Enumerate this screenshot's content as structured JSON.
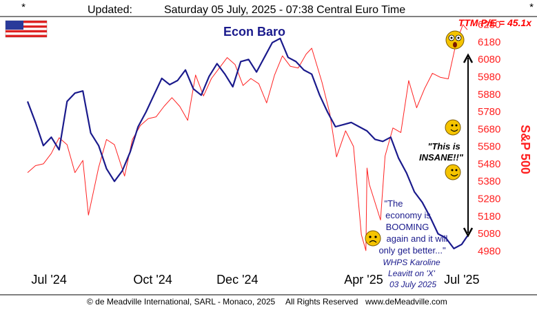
{
  "header": {
    "corner_left": "*",
    "corner_right": "*",
    "updated_label": "Updated:",
    "updated_value": "Saturday 05 July, 2025 - 07:38 Central Euro Time"
  },
  "footer": {
    "copyright": "© de Meadville International, SARL - Monaco, 2025",
    "rights": "All Rights Reserved",
    "website": "www.deMeadville.com"
  },
  "annotations": {
    "flag": "us-flag",
    "ttm_pe": "TTM P/E = 45.1x",
    "insane_line1": "\"This is",
    "insane_line2": "INSANE!!\"",
    "quote_lines": [
      "\"The",
      "economy is",
      "BOOMING",
      "again and it will",
      "only get better...\""
    ],
    "attribution_lines": [
      "WHPS Karoline",
      "Leavitt on 'X'",
      "03 July 2025"
    ],
    "emojis": [
      "screaming-face-icon",
      "smiling-face-icon",
      "smiling-face-icon",
      "worried-face-icon"
    ]
  },
  "colors": {
    "econ_baro": "#1a1a8c",
    "sp500": "#ff2020",
    "annotation_red": "#ff0000",
    "quote_blue": "#1a1a8c",
    "emoji_yellow": "#f5c400"
  },
  "chart_data": {
    "type": "line",
    "title": "Econ Baro",
    "x_ticks": [
      "Jul '24",
      "Oct '24",
      "Dec '24",
      "Apr '25",
      "Jul '25"
    ],
    "right_axis": {
      "label": "S&P 500",
      "ticks": [
        4980,
        5080,
        5180,
        5280,
        5380,
        5480,
        5580,
        5680,
        5780,
        5880,
        5980,
        6080,
        6180,
        6280
      ],
      "range": [
        4950,
        6310
      ]
    },
    "left_axis": {
      "labels_shown": false,
      "range": [
        0,
        100
      ]
    },
    "x_range": [
      "2024-06-12",
      "2025-07-07"
    ],
    "grid": false,
    "series": [
      {
        "name": "Econ Baro",
        "axis": "left",
        "points": [
          [
            "2024-06-12",
            73
          ],
          [
            "2024-06-19",
            63
          ],
          [
            "2024-06-26",
            52
          ],
          [
            "2024-07-03",
            56
          ],
          [
            "2024-07-10",
            50
          ],
          [
            "2024-07-17",
            73
          ],
          [
            "2024-07-24",
            77
          ],
          [
            "2024-07-31",
            78
          ],
          [
            "2024-08-07",
            58
          ],
          [
            "2024-08-14",
            52
          ],
          [
            "2024-08-21",
            41
          ],
          [
            "2024-08-28",
            35
          ],
          [
            "2024-09-04",
            40
          ],
          [
            "2024-09-11",
            49
          ],
          [
            "2024-09-18",
            61
          ],
          [
            "2024-09-25",
            68
          ],
          [
            "2024-10-02",
            76
          ],
          [
            "2024-10-09",
            84
          ],
          [
            "2024-10-16",
            81
          ],
          [
            "2024-10-23",
            83
          ],
          [
            "2024-10-30",
            88
          ],
          [
            "2024-11-06",
            79
          ],
          [
            "2024-11-13",
            76
          ],
          [
            "2024-11-20",
            85
          ],
          [
            "2024-11-27",
            91
          ],
          [
            "2024-12-04",
            86
          ],
          [
            "2024-12-11",
            80
          ],
          [
            "2024-12-18",
            92
          ],
          [
            "2024-12-25",
            93
          ],
          [
            "2025-01-01",
            87
          ],
          [
            "2025-01-08",
            94
          ],
          [
            "2025-01-15",
            101
          ],
          [
            "2025-01-22",
            103
          ],
          [
            "2025-01-29",
            94
          ],
          [
            "2025-02-05",
            92
          ],
          [
            "2025-02-12",
            88
          ],
          [
            "2025-02-19",
            86
          ],
          [
            "2025-02-26",
            76
          ],
          [
            "2025-03-05",
            68
          ],
          [
            "2025-03-12",
            61
          ],
          [
            "2025-03-19",
            62
          ],
          [
            "2025-03-26",
            63
          ],
          [
            "2025-04-02",
            61
          ],
          [
            "2025-04-09",
            59
          ],
          [
            "2025-04-16",
            55
          ],
          [
            "2025-04-23",
            54
          ],
          [
            "2025-04-30",
            56
          ],
          [
            "2025-05-07",
            46
          ],
          [
            "2025-05-14",
            39
          ],
          [
            "2025-05-21",
            30
          ],
          [
            "2025-05-28",
            25
          ],
          [
            "2025-06-04",
            18
          ],
          [
            "2025-06-11",
            10
          ],
          [
            "2025-06-18",
            8
          ],
          [
            "2025-06-25",
            3
          ],
          [
            "2025-07-02",
            5
          ],
          [
            "2025-07-07",
            9
          ]
        ]
      },
      {
        "name": "S&P 500",
        "axis": "right",
        "points": [
          [
            "2024-06-12",
            5430
          ],
          [
            "2024-06-19",
            5470
          ],
          [
            "2024-06-26",
            5480
          ],
          [
            "2024-07-03",
            5540
          ],
          [
            "2024-07-10",
            5630
          ],
          [
            "2024-07-17",
            5590
          ],
          [
            "2024-07-24",
            5430
          ],
          [
            "2024-07-31",
            5500
          ],
          [
            "2024-08-05",
            5186
          ],
          [
            "2024-08-14",
            5460
          ],
          [
            "2024-08-21",
            5620
          ],
          [
            "2024-08-28",
            5590
          ],
          [
            "2024-09-06",
            5410
          ],
          [
            "2024-09-13",
            5620
          ],
          [
            "2024-09-20",
            5700
          ],
          [
            "2024-09-27",
            5740
          ],
          [
            "2024-10-04",
            5750
          ],
          [
            "2024-10-11",
            5810
          ],
          [
            "2024-10-18",
            5860
          ],
          [
            "2024-10-25",
            5810
          ],
          [
            "2024-11-01",
            5730
          ],
          [
            "2024-11-08",
            5990
          ],
          [
            "2024-11-15",
            5870
          ],
          [
            "2024-11-22",
            5970
          ],
          [
            "2024-11-29",
            6030
          ],
          [
            "2024-12-06",
            6090
          ],
          [
            "2024-12-13",
            6050
          ],
          [
            "2024-12-20",
            5930
          ],
          [
            "2024-12-27",
            5970
          ],
          [
            "2025-01-03",
            5940
          ],
          [
            "2025-01-10",
            5830
          ],
          [
            "2025-01-17",
            5990
          ],
          [
            "2025-01-24",
            6100
          ],
          [
            "2025-01-31",
            6040
          ],
          [
            "2025-02-07",
            6030
          ],
          [
            "2025-02-14",
            6110
          ],
          [
            "2025-02-19",
            6144
          ],
          [
            "2025-02-28",
            5950
          ],
          [
            "2025-03-07",
            5770
          ],
          [
            "2025-03-13",
            5520
          ],
          [
            "2025-03-21",
            5670
          ],
          [
            "2025-03-28",
            5580
          ],
          [
            "2025-04-04",
            5074
          ],
          [
            "2025-04-08",
            4982
          ],
          [
            "2025-04-09",
            5456
          ],
          [
            "2025-04-11",
            5363
          ],
          [
            "2025-04-21",
            5158
          ],
          [
            "2025-04-25",
            5525
          ],
          [
            "2025-05-02",
            5686
          ],
          [
            "2025-05-09",
            5660
          ],
          [
            "2025-05-16",
            5958
          ],
          [
            "2025-05-23",
            5802
          ],
          [
            "2025-05-30",
            5911
          ],
          [
            "2025-06-06",
            6000
          ],
          [
            "2025-06-13",
            5977
          ],
          [
            "2025-06-20",
            5968
          ],
          [
            "2025-06-27",
            6173
          ],
          [
            "2025-07-03",
            6279
          ],
          [
            "2025-07-07",
            6250
          ]
        ]
      }
    ]
  }
}
